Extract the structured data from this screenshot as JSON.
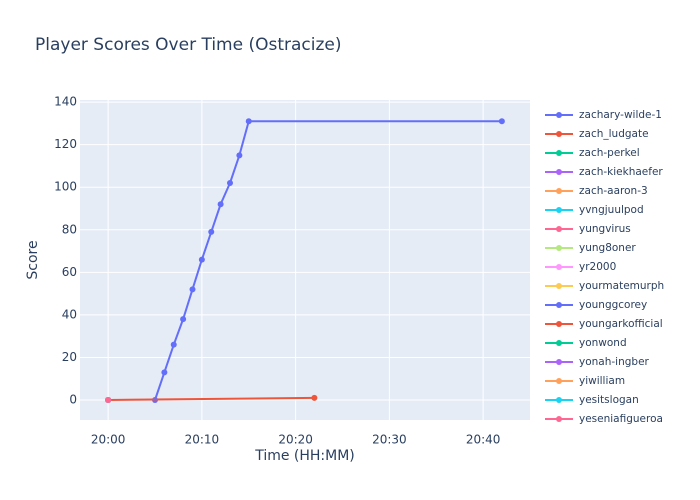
{
  "chart_data": {
    "type": "line",
    "title": "Player Scores Over Time (Ostracize)",
    "x_label": "Time (HH:MM)",
    "y_label": "Score",
    "xlim": [
      "19:57",
      "20:45"
    ],
    "xticks": [
      "20:00",
      "20:10",
      "20:20",
      "20:30",
      "20:40"
    ],
    "ylim": [
      -9.4,
      141
    ],
    "yticks": [
      0,
      20,
      40,
      60,
      80,
      100,
      120,
      140
    ],
    "grid": true,
    "legend": "right",
    "series": [
      {
        "name": "zachary-wilde-1",
        "color": "#636efa",
        "x": [
          "20:05",
          "20:06",
          "20:07",
          "20:08",
          "20:09",
          "20:10",
          "20:11",
          "20:12",
          "20:13",
          "20:14",
          "20:15",
          "20:42"
        ],
        "values": [
          0,
          13,
          26,
          38,
          52,
          66,
          79,
          92,
          102,
          115,
          131,
          131
        ]
      },
      {
        "name": "zach_ludgate",
        "color": "#EF553B",
        "x": [
          "20:00",
          "20:22"
        ],
        "values": [
          0,
          1
        ]
      },
      {
        "name": "zach-perkel",
        "color": "#00cc96",
        "x": [
          "20:00"
        ],
        "values": [
          0
        ]
      },
      {
        "name": "zach-kiekhaefer",
        "color": "#ab63fa",
        "x": [
          "20:00"
        ],
        "values": [
          0
        ]
      },
      {
        "name": "zach-aaron-3",
        "color": "#FFA15A",
        "x": [
          "20:00"
        ],
        "values": [
          0
        ]
      },
      {
        "name": "yvngjuulpod",
        "color": "#19d3f3",
        "x": [
          "20:00"
        ],
        "values": [
          0
        ]
      },
      {
        "name": "yungvirus",
        "color": "#FF6692",
        "x": [
          "20:00"
        ],
        "values": [
          0
        ]
      },
      {
        "name": "yung8oner",
        "color": "#B6E880",
        "x": [
          "20:00"
        ],
        "values": [
          0
        ]
      },
      {
        "name": "yr2000",
        "color": "#FF97FF",
        "x": [
          "20:00"
        ],
        "values": [
          0
        ]
      },
      {
        "name": "yourmatemurph",
        "color": "#FECB52",
        "x": [
          "20:00"
        ],
        "values": [
          0
        ]
      },
      {
        "name": "younggcorey",
        "color": "#636efa",
        "x": [
          "20:00"
        ],
        "values": [
          0
        ]
      },
      {
        "name": "youngarkofficial",
        "color": "#EF553B",
        "x": [
          "20:00"
        ],
        "values": [
          0
        ]
      },
      {
        "name": "yonwond",
        "color": "#00cc96",
        "x": [
          "20:00"
        ],
        "values": [
          0
        ]
      },
      {
        "name": "yonah-ingber",
        "color": "#ab63fa",
        "x": [
          "20:00"
        ],
        "values": [
          0
        ]
      },
      {
        "name": "yiwilliam",
        "color": "#FFA15A",
        "x": [
          "20:00"
        ],
        "values": [
          0
        ]
      },
      {
        "name": "yesitslogan",
        "color": "#19d3f3",
        "x": [
          "20:00"
        ],
        "values": [
          0
        ]
      },
      {
        "name": "yeseniafigueroa",
        "color": "#FF6692",
        "x": [
          "20:00"
        ],
        "values": [
          0
        ]
      }
    ]
  }
}
